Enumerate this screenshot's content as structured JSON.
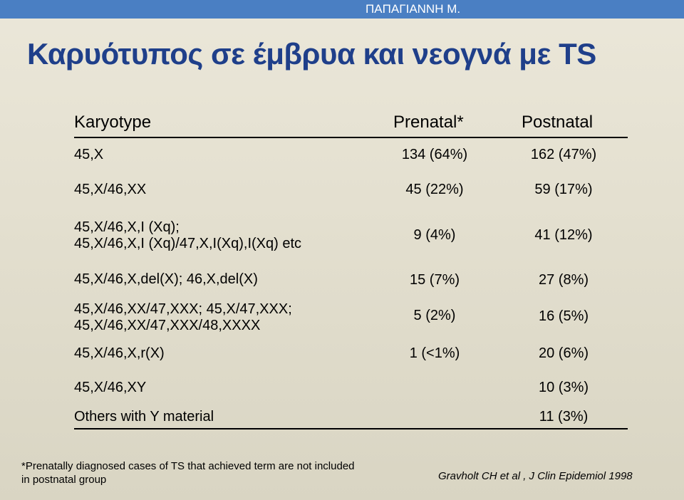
{
  "header": {
    "author": "ΠΑΠΑΓΙΑΝΝΗ Μ."
  },
  "title": "Καρυότυπος  σε έμβρυα και νεογνά με TS",
  "table": {
    "columns": [
      "Karyotype",
      "Prenatal*",
      "Postnatal"
    ],
    "rows": [
      {
        "karyotype": [
          "45,X"
        ],
        "prenatal": "134 (64%)",
        "postnatal": "162 (47%)"
      },
      {
        "karyotype": [
          "45,X/46,XX"
        ],
        "prenatal": "45 (22%)",
        "postnatal": "59 (17%)"
      },
      {
        "karyotype": [
          "45,X/46,X,I (Xq);",
          "45,X/46,X,I (Xq)/47,X,I(Xq),I(Xq) etc"
        ],
        "prenatal": "9 (4%)",
        "postnatal": "41 (12%)"
      },
      {
        "karyotype": [
          "45,X/46,X,del(X); 46,X,del(X)"
        ],
        "prenatal": "15 (7%)",
        "postnatal": "27 (8%)"
      },
      {
        "karyotype": [
          "45,X/46,XX/47,XXX; 45,X/47,XXX;",
          "45,X/46,XX/47,XXX/48,XXXX"
        ],
        "prenatal": "5 (2%)",
        "postnatal": "16 (5%)"
      },
      {
        "karyotype": [
          "45,X/46,X,r(X)"
        ],
        "prenatal": "1 (<1%)",
        "postnatal": "20 (6%)"
      },
      {
        "karyotype": [
          "45,X/46,XY"
        ],
        "prenatal": "",
        "postnatal": "10 (3%)"
      },
      {
        "karyotype": [
          "Others with Y material"
        ],
        "prenatal": "",
        "postnatal": "11 (3%)"
      }
    ]
  },
  "footnote": "*Prenatally diagnosed cases of TS that achieved term are not included in postnatal group",
  "citation": "Gravholt CH et al , J Clin Epidemiol 1998",
  "colors": {
    "top_bar": "#4a7fc3",
    "title": "#1f3f8a",
    "background": "#e6e2d3"
  }
}
